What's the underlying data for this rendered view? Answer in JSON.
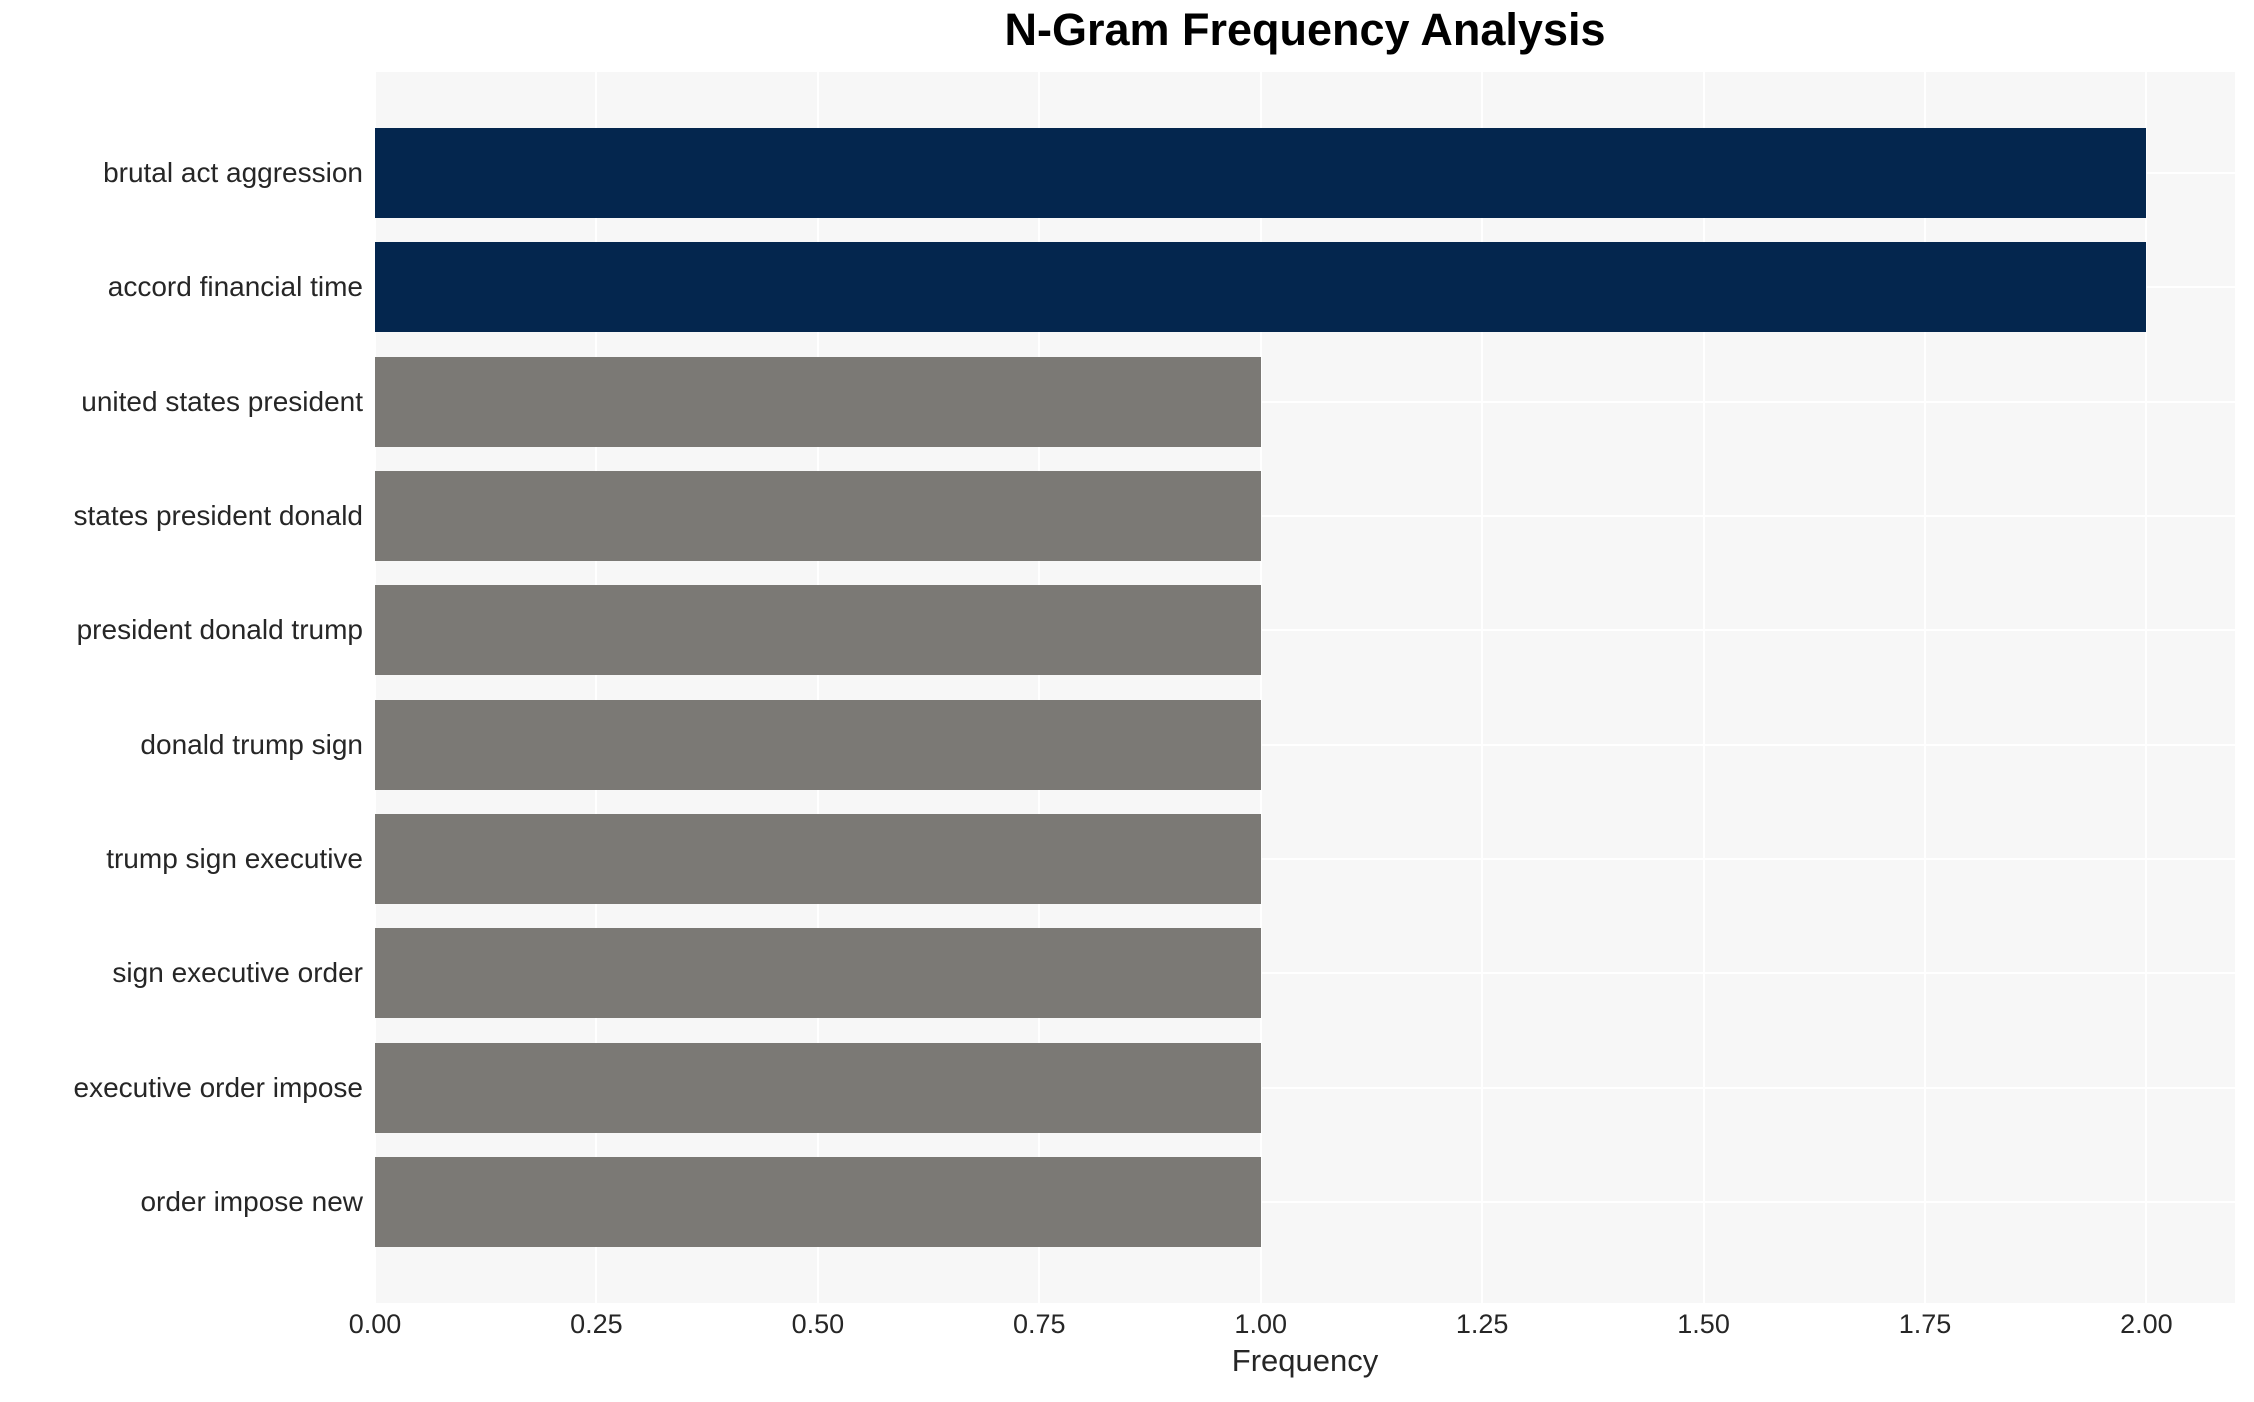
{
  "chart_data": {
    "type": "bar",
    "orientation": "horizontal",
    "title": "N-Gram Frequency Analysis",
    "xlabel": "Frequency",
    "ylabel": "",
    "categories": [
      "brutal act aggression",
      "accord financial time",
      "united states president",
      "states president donald",
      "president donald trump",
      "donald trump sign",
      "trump sign executive",
      "sign executive order",
      "executive order impose",
      "order impose new"
    ],
    "values": [
      2,
      2,
      1,
      1,
      1,
      1,
      1,
      1,
      1,
      1
    ],
    "bar_colors": [
      "#04264e",
      "#04264e",
      "#7b7975",
      "#7b7975",
      "#7b7975",
      "#7b7975",
      "#7b7975",
      "#7b7975",
      "#7b7975",
      "#7b7975"
    ],
    "xlim": [
      0,
      2.1
    ],
    "xtick_values": [
      0,
      0.25,
      0.5,
      0.75,
      1.0,
      1.25,
      1.5,
      1.75,
      2.0
    ],
    "xtick_labels": [
      "0.00",
      "0.25",
      "0.50",
      "0.75",
      "1.00",
      "1.25",
      "1.50",
      "1.75",
      "2.00"
    ],
    "grid": "on",
    "legend": "none",
    "palette": {
      "high_value_bar": "#04264e",
      "low_value_bar": "#7b7975",
      "panel_background": "#f7f7f7",
      "gridline": "#ffffff",
      "tick_text": "#262626",
      "title_text": "#000000"
    }
  }
}
